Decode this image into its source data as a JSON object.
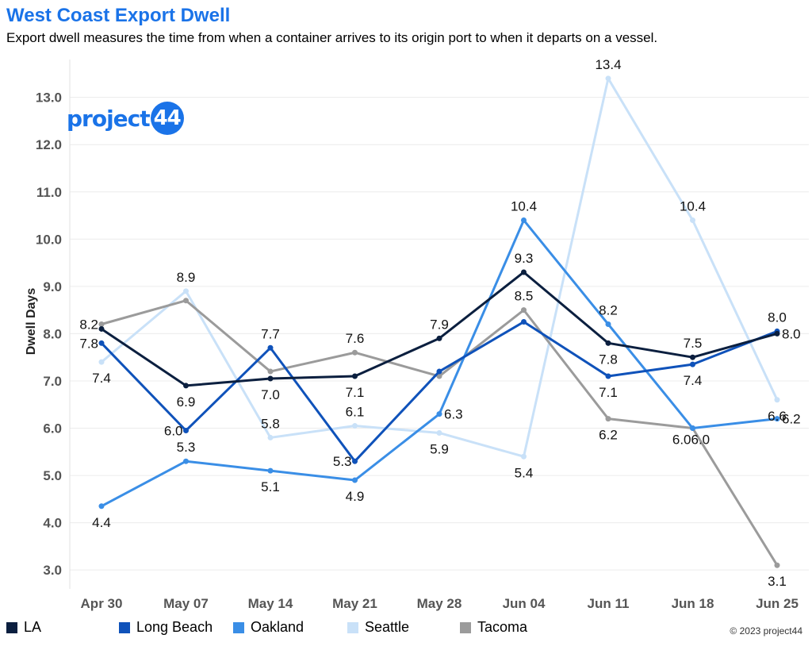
{
  "title": "West Coast Export Dwell",
  "subtitle": "Export dwell measures the time from when a container arrives to its origin port to when it departs on a vessel.",
  "logo": {
    "text": "project",
    "badge": "44"
  },
  "copyright": "© 2023 project44",
  "chart_data": {
    "type": "line",
    "ylabel": "Dwell Days",
    "xlabel": "",
    "ylim": [
      2.6,
      13.8
    ],
    "yticks": [
      "3.0",
      "4.0",
      "5.0",
      "6.0",
      "7.0",
      "8.0",
      "9.0",
      "10.0",
      "11.0",
      "12.0",
      "13.0"
    ],
    "categories": [
      "Apr 30",
      "May 07",
      "May 14",
      "May 21",
      "May 28",
      "Jun 04",
      "Jun 11",
      "Jun 18",
      "Jun 25"
    ],
    "grid": "horizontal",
    "legend_position": "bottom",
    "series": [
      {
        "name": "Seattle",
        "color": "#c9e1f8",
        "values": [
          7.4,
          8.9,
          5.8,
          6.05,
          5.9,
          5.4,
          13.4,
          10.4,
          6.6
        ],
        "labels": [
          "7.4",
          "8.9",
          "5.8",
          "6.1",
          "5.9",
          "5.4",
          "13.4",
          "10.4",
          "6.6"
        ],
        "label_pos": [
          "below",
          "above",
          "above",
          "above",
          "below",
          "below",
          "above",
          "above",
          "below"
        ]
      },
      {
        "name": "Tacoma",
        "color": "#9b9b9b",
        "values": [
          8.2,
          8.7,
          7.2,
          7.6,
          7.1,
          8.5,
          6.2,
          6.0,
          3.1
        ],
        "labels": [
          "8.2",
          "",
          "",
          "7.6",
          "",
          "8.5",
          "6.2",
          "6.0",
          "3.1"
        ],
        "label_pos": [
          "left",
          "above",
          "above",
          "above",
          "above",
          "above",
          "below",
          "rightish",
          "below"
        ]
      },
      {
        "name": "Oakland",
        "color": "#3a8ee6",
        "values": [
          4.35,
          5.3,
          5.1,
          4.9,
          6.3,
          10.4,
          8.2,
          6.0,
          6.2
        ],
        "labels": [
          "4.4",
          "5.3",
          "5.1",
          "4.9",
          "6.3",
          "10.4",
          "8.2",
          "6.0",
          "6.2"
        ],
        "label_pos": [
          "below",
          "above",
          "below",
          "below",
          "right",
          "above",
          "above",
          "leftish",
          "right"
        ]
      },
      {
        "name": "Long Beach",
        "color": "#0f52ba",
        "values": [
          7.8,
          5.95,
          7.7,
          5.3,
          7.2,
          8.25,
          7.1,
          7.35,
          8.05
        ],
        "labels": [
          "7.8",
          "6.0",
          "7.7",
          "5.3",
          "",
          "",
          "7.1",
          "7.4",
          "8.0"
        ],
        "label_pos": [
          "left",
          "left",
          "above",
          "left",
          "above",
          "above",
          "below",
          "below",
          "above"
        ]
      },
      {
        "name": "LA",
        "color": "#0b1f3f",
        "values": [
          8.1,
          6.9,
          7.05,
          7.1,
          7.9,
          9.3,
          7.8,
          7.5,
          8.0
        ],
        "labels": [
          "",
          "6.9",
          "7.0",
          "7.1",
          "7.9",
          "9.3",
          "7.8",
          "7.5",
          "8.0"
        ],
        "label_pos": [
          "above",
          "below",
          "below",
          "below",
          "above",
          "above",
          "below",
          "above",
          "right"
        ]
      }
    ],
    "legend": [
      {
        "name": "LA",
        "color": "#0b1f3f"
      },
      {
        "name": "Long Beach",
        "color": "#0f52ba"
      },
      {
        "name": "Oakland",
        "color": "#3a8ee6"
      },
      {
        "name": "Seattle",
        "color": "#c9e1f8"
      },
      {
        "name": "Tacoma",
        "color": "#9b9b9b"
      }
    ]
  }
}
